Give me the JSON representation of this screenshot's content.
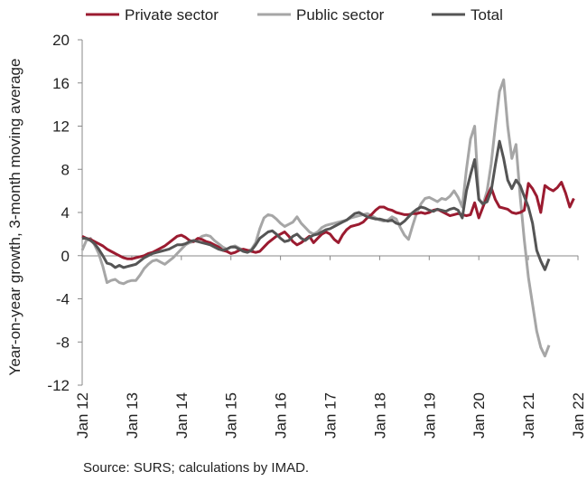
{
  "chart_data": {
    "type": "line",
    "ylabel": "Year-on-year growth, 3-month moving average",
    "xlabel": "",
    "ylim": [
      -12,
      20
    ],
    "yticks": [
      -12,
      -8,
      -4,
      0,
      4,
      8,
      12,
      16,
      20
    ],
    "x_start": "Jan 12",
    "x_tick_labels": [
      "Jan 12",
      "Jan 13",
      "Jan 14",
      "Jan 15",
      "Jan 16",
      "Jan 17",
      "Jan 18",
      "Jan 19",
      "Jan 20",
      "Jan 21",
      "Jan 22"
    ],
    "grid": false,
    "legend_position": "top",
    "series": [
      {
        "name": "Private sector",
        "color": "#9b1b30",
        "values": [
          1.8,
          1.6,
          1.5,
          1.3,
          1.1,
          0.9,
          0.6,
          0.4,
          0.2,
          0.0,
          -0.2,
          -0.3,
          -0.3,
          -0.2,
          -0.1,
          0.0,
          0.2,
          0.3,
          0.5,
          0.7,
          0.9,
          1.2,
          1.5,
          1.8,
          1.9,
          1.7,
          1.4,
          1.3,
          1.6,
          1.5,
          1.3,
          1.2,
          1.0,
          0.8,
          0.5,
          0.4,
          0.2,
          0.3,
          0.5,
          0.6,
          0.5,
          0.4,
          0.3,
          0.4,
          0.8,
          1.2,
          1.5,
          1.8,
          2.0,
          2.2,
          1.8,
          1.3,
          1.0,
          1.2,
          1.5,
          1.8,
          1.2,
          1.6,
          2.0,
          2.2,
          2.0,
          1.5,
          1.2,
          1.9,
          2.4,
          2.7,
          2.8,
          2.9,
          3.1,
          3.5,
          3.8,
          4.2,
          4.5,
          4.5,
          4.3,
          4.2,
          4.0,
          3.9,
          3.8,
          3.8,
          3.9,
          3.9,
          4.0,
          3.9,
          4.0,
          4.2,
          4.3,
          4.1,
          3.9,
          3.7,
          3.8,
          3.9,
          3.8,
          3.7,
          3.8,
          4.9,
          3.5,
          4.5,
          5.5,
          6.3,
          5.2,
          4.5,
          4.4,
          4.3,
          4.0,
          3.9,
          4.0,
          4.2,
          6.7,
          6.2,
          5.5,
          4.0,
          6.5,
          6.2,
          6.0,
          6.3,
          6.8,
          5.8,
          4.5,
          5.3
        ]
      },
      {
        "name": "Public sector",
        "color": "#a6a6a6",
        "values": [
          0.5,
          1.4,
          1.6,
          1.0,
          0.2,
          -1.0,
          -2.5,
          -2.3,
          -2.2,
          -2.5,
          -2.6,
          -2.4,
          -2.3,
          -2.3,
          -1.8,
          -1.2,
          -0.8,
          -0.5,
          -0.4,
          -0.6,
          -0.8,
          -0.5,
          -0.2,
          0.2,
          0.6,
          1.0,
          1.2,
          1.3,
          1.5,
          1.8,
          1.9,
          1.8,
          1.4,
          1.1,
          0.8,
          0.6,
          0.8,
          0.9,
          0.7,
          0.5,
          0.4,
          0.6,
          1.2,
          2.5,
          3.5,
          3.8,
          3.7,
          3.4,
          3.0,
          2.7,
          2.9,
          3.1,
          3.6,
          3.0,
          2.6,
          2.2,
          2.0,
          2.2,
          2.6,
          2.8,
          2.9,
          3.0,
          3.1,
          3.2,
          3.3,
          3.5,
          3.6,
          3.7,
          3.8,
          3.9,
          3.7,
          3.5,
          3.3,
          3.2,
          3.3,
          3.6,
          3.4,
          2.6,
          1.9,
          1.5,
          2.8,
          4.0,
          4.8,
          5.3,
          5.4,
          5.2,
          5.0,
          5.3,
          5.2,
          5.5,
          6.0,
          5.4,
          4.5,
          8.0,
          10.8,
          12.0,
          5.3,
          4.7,
          6.0,
          8.5,
          12.0,
          15.2,
          16.3,
          12.0,
          9.0,
          10.3,
          5.5,
          1.5,
          -2.0,
          -4.5,
          -7.0,
          -8.5,
          -9.3,
          -8.3
        ]
      },
      {
        "name": "Total",
        "color": "#555555",
        "values": [
          1.6,
          1.6,
          1.4,
          1.1,
          0.6,
          0.0,
          -0.7,
          -0.8,
          -1.1,
          -0.9,
          -1.1,
          -1.0,
          -0.9,
          -0.8,
          -0.5,
          -0.2,
          0.0,
          0.2,
          0.3,
          0.4,
          0.5,
          0.6,
          0.8,
          1.0,
          1.0,
          1.1,
          1.3,
          1.4,
          1.3,
          1.2,
          1.1,
          1.0,
          0.8,
          0.6,
          0.5,
          0.6,
          0.8,
          0.8,
          0.6,
          0.4,
          0.3,
          0.5,
          1.0,
          1.6,
          1.9,
          2.2,
          2.3,
          2.0,
          1.6,
          1.3,
          1.4,
          1.8,
          2.0,
          1.6,
          1.4,
          1.7,
          1.9,
          2.0,
          2.2,
          2.4,
          2.5,
          2.7,
          2.9,
          3.1,
          3.3,
          3.6,
          3.9,
          4.0,
          3.8,
          3.6,
          3.5,
          3.4,
          3.4,
          3.3,
          3.2,
          3.3,
          3.0,
          2.9,
          3.2,
          3.6,
          4.0,
          4.3,
          4.5,
          4.4,
          4.2,
          4.1,
          4.3,
          4.2,
          4.1,
          4.3,
          4.4,
          4.2,
          3.5,
          6.0,
          7.5,
          8.9,
          5.2,
          4.8,
          5.0,
          6.0,
          8.4,
          10.6,
          9.0,
          7.0,
          6.2,
          7.0,
          6.5,
          5.5,
          4.5,
          3.0,
          0.5,
          -0.5,
          -1.3,
          -0.3
        ]
      }
    ],
    "source": "Source: SURS; calculations by IMAD."
  }
}
